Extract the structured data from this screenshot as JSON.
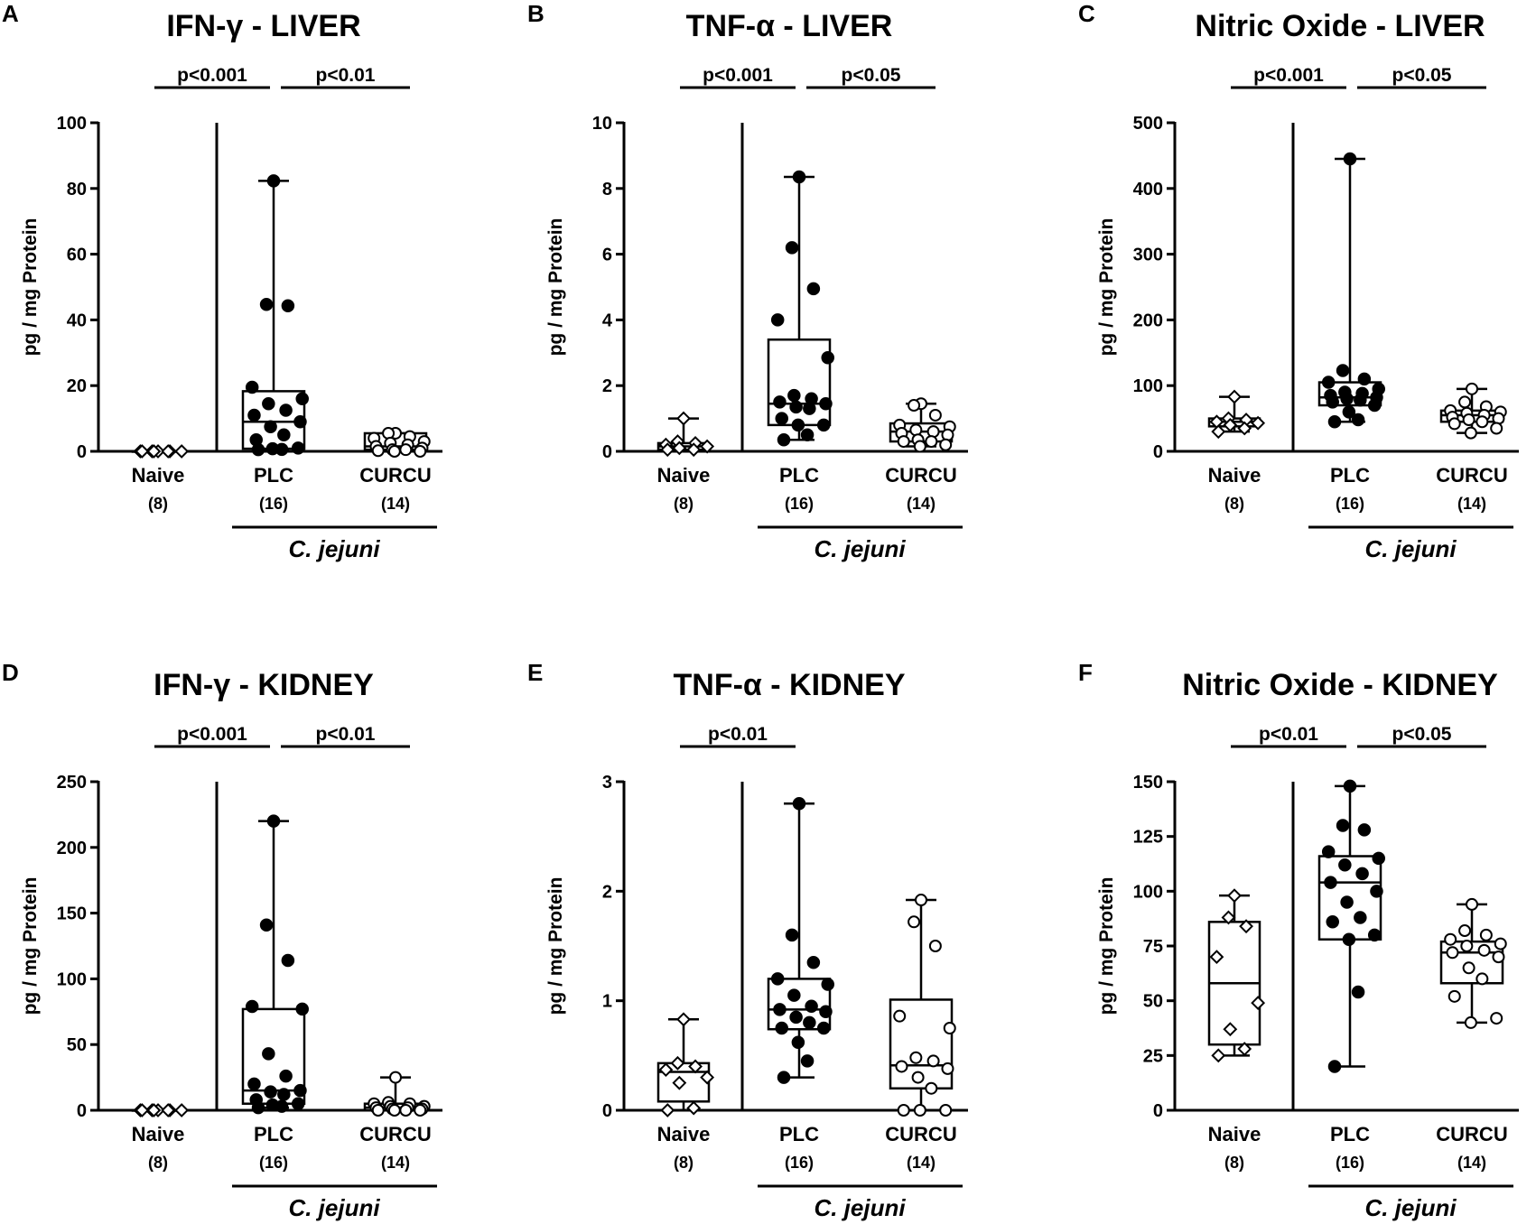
{
  "figure": {
    "species_label": "C. jejuni"
  },
  "chart_data": [
    {
      "type": "box",
      "letter": "A",
      "title": "IFN-γ - LIVER",
      "ylabel": "pg / mg Protein",
      "ylim": [
        0,
        100
      ],
      "yticks": [
        0,
        20,
        40,
        60,
        80,
        100
      ],
      "groups": [
        {
          "name": "Naive",
          "n": "(8)",
          "marker": "diamond",
          "min": 0,
          "q1": 0,
          "median": 0,
          "q3": 0,
          "max": 0,
          "points": [
            0,
            0,
            0,
            0,
            0,
            0,
            0,
            0
          ]
        },
        {
          "name": "PLC",
          "n": "(16)",
          "marker": "filled",
          "min": 0.5,
          "q1": 0.8,
          "median": 9,
          "q3": 18.3,
          "max": 82.3,
          "points": [
            82.3,
            44.7,
            44.3,
            19.5,
            16,
            14.5,
            12.5,
            11,
            9,
            7.5,
            5,
            3.5,
            1,
            0.8,
            0.6,
            0.5
          ]
        },
        {
          "name": "CURCU",
          "n": "(14)",
          "marker": "open",
          "min": 0,
          "q1": 0.5,
          "median": 1.5,
          "q3": 5.5,
          "max": 5.5,
          "points": [
            5.5,
            5.5,
            4.5,
            4,
            3,
            2.5,
            2,
            1.5,
            1,
            0.5,
            0.5,
            0.2,
            0,
            0
          ]
        }
      ],
      "significance": [
        {
          "label": "p<0.001",
          "from": 0,
          "to": 1
        },
        {
          "label": "p<0.01",
          "from": 1,
          "to": 2
        }
      ]
    },
    {
      "type": "box",
      "letter": "B",
      "title": "TNF-α - LIVER",
      "ylabel": "pg / mg Protein",
      "ylim": [
        0,
        10
      ],
      "yticks": [
        0,
        2,
        4,
        6,
        8,
        10
      ],
      "groups": [
        {
          "name": "Naive",
          "n": "(8)",
          "marker": "diamond",
          "min": 0,
          "q1": 0.05,
          "median": 0.15,
          "q3": 0.25,
          "max": 1.0,
          "points": [
            1.0,
            0.3,
            0.25,
            0.2,
            0.15,
            0.1,
            0.05,
            0.05
          ]
        },
        {
          "name": "PLC",
          "n": "(16)",
          "marker": "filled",
          "min": 0.35,
          "q1": 0.8,
          "median": 1.45,
          "q3": 3.4,
          "max": 8.35,
          "points": [
            8.35,
            6.2,
            4.95,
            4.0,
            2.85,
            1.7,
            1.6,
            1.5,
            1.45,
            1.35,
            1.3,
            1.0,
            0.8,
            0.8,
            0.5,
            0.35
          ]
        },
        {
          "name": "CURCU",
          "n": "(14)",
          "marker": "open",
          "min": 0.15,
          "q1": 0.3,
          "median": 0.6,
          "q3": 0.85,
          "max": 1.45,
          "points": [
            1.45,
            1.4,
            1.1,
            0.8,
            0.75,
            0.65,
            0.6,
            0.55,
            0.5,
            0.35,
            0.3,
            0.3,
            0.2,
            0.15
          ]
        }
      ],
      "significance": [
        {
          "label": "p<0.001",
          "from": 0,
          "to": 1
        },
        {
          "label": "p<0.05",
          "from": 1,
          "to": 2
        }
      ]
    },
    {
      "type": "box",
      "letter": "C",
      "title": "Nitric Oxide - LIVER",
      "ylabel": "pg / mg Protein",
      "ylim": [
        0,
        500
      ],
      "yticks": [
        0,
        100,
        200,
        300,
        400,
        500
      ],
      "groups": [
        {
          "name": "Naive",
          "n": "(8)",
          "marker": "diamond",
          "min": 30,
          "q1": 38,
          "median": 45,
          "q3": 50,
          "max": 83,
          "points": [
            83,
            50,
            48,
            45,
            43,
            40,
            35,
            30
          ]
        },
        {
          "name": "PLC",
          "n": "(16)",
          "marker": "filled",
          "min": 45,
          "q1": 70,
          "median": 82,
          "q3": 105,
          "max": 445,
          "points": [
            445,
            123,
            110,
            105,
            95,
            90,
            88,
            85,
            82,
            80,
            78,
            75,
            70,
            60,
            48,
            45
          ]
        },
        {
          "name": "CURCU",
          "n": "(14)",
          "marker": "open",
          "min": 28,
          "q1": 45,
          "median": 55,
          "q3": 62,
          "max": 95,
          "points": [
            95,
            75,
            68,
            62,
            60,
            58,
            55,
            52,
            50,
            48,
            45,
            42,
            35,
            28
          ]
        }
      ],
      "significance": [
        {
          "label": "p<0.001",
          "from": 0,
          "to": 1
        },
        {
          "label": "p<0.05",
          "from": 1,
          "to": 2
        }
      ]
    },
    {
      "type": "box",
      "letter": "D",
      "title": "IFN-γ - KIDNEY",
      "ylabel": "pg / mg Protein",
      "ylim": [
        0,
        250
      ],
      "yticks": [
        0,
        50,
        100,
        150,
        200,
        250
      ],
      "groups": [
        {
          "name": "Naive",
          "n": "(8)",
          "marker": "diamond",
          "min": 0,
          "q1": 0,
          "median": 0,
          "q3": 0,
          "max": 0,
          "points": [
            0,
            0,
            0,
            0,
            0,
            0,
            0,
            0
          ]
        },
        {
          "name": "PLC",
          "n": "(16)",
          "marker": "filled",
          "min": 2,
          "q1": 5,
          "median": 15,
          "q3": 77,
          "max": 220,
          "points": [
            220,
            141,
            114,
            79,
            77,
            43,
            26,
            20,
            15,
            14,
            12,
            8,
            5,
            4,
            3,
            2
          ]
        },
        {
          "name": "CURCU",
          "n": "(14)",
          "marker": "open",
          "min": 0,
          "q1": 0,
          "median": 2,
          "q3": 5,
          "max": 25,
          "points": [
            25,
            6,
            5,
            5,
            3,
            3,
            2,
            2,
            1,
            1,
            0,
            0,
            0,
            0
          ]
        }
      ],
      "significance": [
        {
          "label": "p<0.001",
          "from": 0,
          "to": 1
        },
        {
          "label": "p<0.01",
          "from": 1,
          "to": 2
        }
      ]
    },
    {
      "type": "box",
      "letter": "E",
      "title": "TNF-α - KIDNEY",
      "ylabel": "pg / mg Protein",
      "ylim": [
        0,
        3
      ],
      "yticks": [
        0,
        1,
        2,
        3
      ],
      "groups": [
        {
          "name": "Naive",
          "n": "(8)",
          "marker": "diamond",
          "min": 0,
          "q1": 0.08,
          "median": 0.35,
          "q3": 0.43,
          "max": 0.83,
          "points": [
            0.83,
            0.43,
            0.4,
            0.37,
            0.3,
            0.25,
            0.02,
            0.0
          ]
        },
        {
          "name": "PLC",
          "n": "(16)",
          "marker": "filled",
          "min": 0.3,
          "q1": 0.74,
          "median": 0.92,
          "q3": 1.2,
          "max": 2.8,
          "points": [
            2.8,
            1.6,
            1.35,
            1.2,
            1.15,
            1.05,
            0.95,
            0.92,
            0.9,
            0.85,
            0.8,
            0.75,
            0.75,
            0.62,
            0.45,
            0.3
          ]
        },
        {
          "name": "CURCU",
          "n": "(14)",
          "marker": "open",
          "min": 0,
          "q1": 0.2,
          "median": 0.41,
          "q3": 1.01,
          "max": 1.92,
          "points": [
            1.92,
            1.72,
            1.5,
            0.86,
            0.75,
            0.48,
            0.45,
            0.4,
            0.38,
            0.3,
            0.2,
            0.0,
            0.0,
            0.0
          ]
        }
      ],
      "significance": [
        {
          "label": "p<0.01",
          "from": 0,
          "to": 1
        }
      ]
    },
    {
      "type": "box",
      "letter": "F",
      "title": "Nitric Oxide - KIDNEY",
      "ylabel": "pg / mg Protein",
      "ylim": [
        0,
        150
      ],
      "yticks": [
        0,
        25,
        50,
        75,
        100,
        125,
        150
      ],
      "groups": [
        {
          "name": "Naive",
          "n": "(8)",
          "marker": "diamond",
          "min": 25,
          "q1": 30,
          "median": 58,
          "q3": 86,
          "max": 98,
          "points": [
            98,
            88,
            84,
            70,
            49,
            37,
            28,
            25
          ]
        },
        {
          "name": "PLC",
          "n": "(16)",
          "marker": "filled",
          "min": 20,
          "q1": 78,
          "median": 104,
          "q3": 116,
          "max": 148,
          "points": [
            148,
            130,
            128,
            118,
            115,
            112,
            108,
            104,
            100,
            95,
            88,
            86,
            80,
            78,
            54,
            20
          ]
        },
        {
          "name": "CURCU",
          "n": "(14)",
          "marker": "open",
          "min": 40,
          "q1": 58,
          "median": 72,
          "q3": 77,
          "max": 94,
          "points": [
            94,
            82,
            80,
            78,
            76,
            75,
            73,
            72,
            70,
            65,
            60,
            52,
            42,
            40
          ]
        }
      ],
      "significance": [
        {
          "label": "p<0.01",
          "from": 0,
          "to": 1
        },
        {
          "label": "p<0.05",
          "from": 1,
          "to": 2
        }
      ]
    }
  ]
}
